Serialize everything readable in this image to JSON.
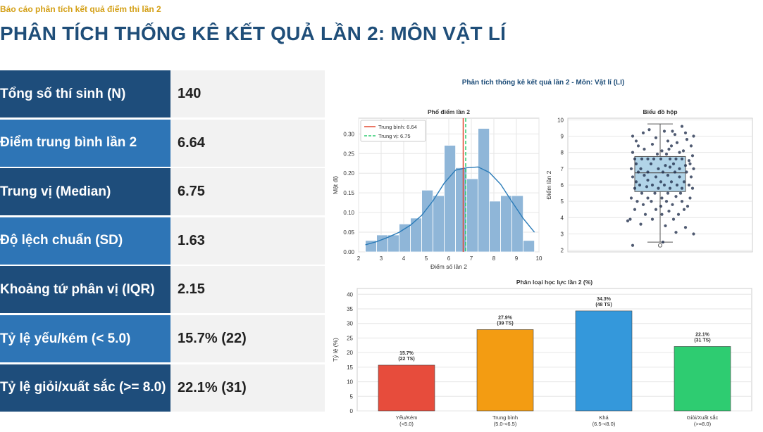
{
  "header": {
    "subtitle": "Báo cáo phân tích kết quả điểm thi lần 2",
    "title": "PHÂN TÍCH THỐNG KÊ KẾT QUẢ LẦN 2: MÔN VẬT LÍ"
  },
  "stats": [
    {
      "label": "Tổng số thí sinh (N)",
      "value": "140"
    },
    {
      "label": "Điểm trung bình lần 2",
      "value": "6.64"
    },
    {
      "label": "Trung vị (Median)",
      "value": "6.75"
    },
    {
      "label": "Độ lệch chuẩn (SD)",
      "value": "1.63"
    },
    {
      "label": "Khoảng tứ phân vị (IQR)",
      "value": "2.15"
    },
    {
      "label": "Tỷ lệ yếu/kém (< 5.0)",
      "value": "15.7% (22)"
    },
    {
      "label": "Tỷ lệ giỏi/xuất sắc (>= 8.0)",
      "value": "22.1% (31)"
    }
  ],
  "figure_title": "Phân tích thống kê kết quả lần 2 - Môn: Vật lí (LI)",
  "colors": {
    "hist_bar": "#8fb6d8",
    "kde": "#2a7bb8",
    "mean": "#e24a33",
    "median": "#2ecc71",
    "box": "#a9cfe6",
    "points": "#1f2d4a"
  },
  "chart_data": [
    {
      "type": "bar",
      "title": "Phổ điểm lần 2",
      "xlabel": "Điểm số lần 2",
      "ylabel": "Mật độ",
      "xlim": [
        2,
        10
      ],
      "ylim": [
        0,
        0.34
      ],
      "xticks": [
        "2",
        "3",
        "4",
        "5",
        "6",
        "7",
        "8",
        "9",
        "10"
      ],
      "yticks": [
        "0.00",
        "0.05",
        "0.10",
        "0.15",
        "0.20",
        "0.25",
        "0.30"
      ],
      "bin_edges": [
        2.3,
        2.8,
        3.3,
        3.8,
        4.3,
        4.8,
        5.3,
        5.8,
        6.3,
        6.8,
        7.3,
        7.8,
        8.3,
        8.8,
        9.3,
        9.8
      ],
      "values": [
        0.029,
        0.043,
        0.043,
        0.071,
        0.086,
        0.157,
        0.143,
        0.271,
        0.214,
        0.186,
        0.314,
        0.129,
        0.143,
        0.143,
        0.029
      ],
      "kde_x": [
        2.3,
        2.8,
        3.3,
        3.8,
        4.3,
        4.8,
        5.3,
        5.8,
        6.3,
        6.8,
        7.3,
        7.8,
        8.3,
        8.8,
        9.3,
        9.8
      ],
      "kde_y": [
        0.018,
        0.026,
        0.037,
        0.05,
        0.068,
        0.093,
        0.13,
        0.175,
        0.208,
        0.214,
        0.216,
        0.202,
        0.172,
        0.128,
        0.085,
        0.05
      ],
      "legend": [
        {
          "name": "Trung bình: 6.64",
          "value": 6.64
        },
        {
          "name": "Trung vị: 6.75",
          "value": 6.75
        }
      ]
    },
    {
      "type": "scatter",
      "title": "Biểu đồ hộp",
      "ylabel": "Điểm lần 2",
      "ylim": [
        1.9,
        10.1
      ],
      "yticks": [
        "2",
        "3",
        "4",
        "5",
        "6",
        "7",
        "8",
        "9",
        "10"
      ],
      "box": {
        "q1": 5.6,
        "median": 6.75,
        "q3": 7.75,
        "whisker_low": 2.5,
        "whisker_high": 9.75,
        "outliers": [
          2.3
        ]
      },
      "points": [
        [
          -0.78,
          9.0
        ],
        [
          0.62,
          9.6
        ],
        [
          -0.31,
          9.4
        ],
        [
          0.12,
          9.3
        ],
        [
          0.35,
          9.3
        ],
        [
          0.95,
          9.0
        ],
        [
          -0.68,
          8.7
        ],
        [
          0.48,
          8.6
        ],
        [
          0.76,
          8.8
        ],
        [
          0.22,
          8.7
        ],
        [
          -0.22,
          8.5
        ],
        [
          -0.62,
          8.4
        ],
        [
          0.32,
          8.4
        ],
        [
          0.88,
          8.4
        ],
        [
          -0.45,
          8.2
        ],
        [
          0.05,
          8.1
        ],
        [
          0.66,
          8.1
        ],
        [
          -0.78,
          8.0
        ],
        [
          0.55,
          8.0
        ],
        [
          0.18,
          7.9
        ],
        [
          0.92,
          7.8
        ],
        [
          -0.72,
          7.6
        ],
        [
          -0.52,
          7.6
        ],
        [
          -0.35,
          7.6
        ],
        [
          -0.18,
          7.6
        ],
        [
          0.02,
          7.6
        ],
        [
          0.28,
          7.6
        ],
        [
          0.45,
          7.6
        ],
        [
          0.62,
          7.6
        ],
        [
          0.82,
          7.5
        ],
        [
          -0.68,
          7.3
        ],
        [
          -0.26,
          7.3
        ],
        [
          0.15,
          7.2
        ],
        [
          0.38,
          7.3
        ],
        [
          0.72,
          7.2
        ],
        [
          -0.82,
          7.0
        ],
        [
          -0.55,
          7.0
        ],
        [
          -0.05,
          7.0
        ],
        [
          0.28,
          7.1
        ],
        [
          0.55,
          7.0
        ],
        [
          0.95,
          7.0
        ],
        [
          -0.62,
          6.8
        ],
        [
          -0.35,
          6.8
        ],
        [
          0.08,
          6.8
        ],
        [
          0.42,
          6.8
        ],
        [
          0.75,
          6.8
        ],
        [
          -0.78,
          6.5
        ],
        [
          -0.45,
          6.6
        ],
        [
          -0.12,
          6.5
        ],
        [
          0.22,
          6.6
        ],
        [
          0.55,
          6.5
        ],
        [
          0.88,
          6.5
        ],
        [
          -0.68,
          6.2
        ],
        [
          -0.35,
          6.3
        ],
        [
          0.02,
          6.2
        ],
        [
          0.32,
          6.2
        ],
        [
          0.68,
          6.2
        ],
        [
          -0.58,
          6.0
        ],
        [
          -0.22,
          6.0
        ],
        [
          0.12,
          6.0
        ],
        [
          0.48,
          6.0
        ],
        [
          0.82,
          6.0
        ],
        [
          -0.72,
          5.8
        ],
        [
          -0.38,
          5.9
        ],
        [
          -0.05,
          5.8
        ],
        [
          0.28,
          5.8
        ],
        [
          0.62,
          5.8
        ],
        [
          0.92,
          5.8
        ],
        [
          -0.52,
          5.5
        ],
        [
          -0.15,
          5.5
        ],
        [
          0.22,
          5.5
        ],
        [
          0.58,
          5.5
        ],
        [
          -0.82,
          5.2
        ],
        [
          -0.35,
          5.2
        ],
        [
          0.05,
          5.2
        ],
        [
          0.45,
          5.3
        ],
        [
          0.85,
          5.2
        ],
        [
          -0.65,
          5.0
        ],
        [
          -0.25,
          5.0
        ],
        [
          0.18,
          5.0
        ],
        [
          0.62,
          5.0
        ],
        [
          -0.48,
          4.8
        ],
        [
          0.02,
          4.7
        ],
        [
          0.35,
          4.8
        ],
        [
          0.78,
          4.7
        ],
        [
          -0.72,
          4.5
        ],
        [
          -0.12,
          4.5
        ],
        [
          0.25,
          4.4
        ],
        [
          0.68,
          4.5
        ],
        [
          -0.42,
          4.2
        ],
        [
          0.05,
          4.2
        ],
        [
          0.52,
          4.2
        ],
        [
          -0.85,
          3.9
        ],
        [
          -0.22,
          3.9
        ],
        [
          0.38,
          3.9
        ],
        [
          -0.55,
          3.6
        ],
        [
          0.15,
          3.5
        ],
        [
          0.72,
          3.4
        ],
        [
          -0.92,
          3.8
        ],
        [
          0.45,
          3.1
        ],
        [
          0.95,
          3.0
        ],
        [
          -0.78,
          2.3
        ],
        [
          0.08,
          2.5
        ],
        [
          -0.08,
          7.9
        ],
        [
          0.42,
          9.1
        ],
        [
          0.72,
          9.2
        ],
        [
          -0.48,
          9.2
        ],
        [
          0.25,
          8.2
        ],
        [
          -0.12,
          8.9
        ],
        [
          0.85,
          7.3
        ]
      ]
    },
    {
      "type": "bar",
      "title": "Phân loại học lực lần 2 (%)",
      "ylabel": "Tỷ lệ (%)",
      "ylim": [
        0,
        42
      ],
      "yticks": [
        "0",
        "5",
        "10",
        "15",
        "20",
        "25",
        "30",
        "35",
        "40"
      ],
      "categories": [
        [
          "Yếu/Kém",
          "(<5.0)"
        ],
        [
          "Trung bình",
          "(5.0-<6.5)"
        ],
        [
          "Khá",
          "(6.5-<8.0)"
        ],
        [
          "Giỏi/Xuất sắc",
          "(>=8.0)"
        ]
      ],
      "values": [
        15.7,
        27.9,
        34.3,
        22.1
      ],
      "data_labels": [
        [
          "15.7%",
          "(22 TS)"
        ],
        [
          "27.9%",
          "(39 TS)"
        ],
        [
          "34.3%",
          "(48 TS)"
        ],
        [
          "22.1%",
          "(31 TS)"
        ]
      ],
      "colors": [
        "#e74c3c",
        "#f39c12",
        "#3498db",
        "#2ecc71"
      ]
    }
  ]
}
